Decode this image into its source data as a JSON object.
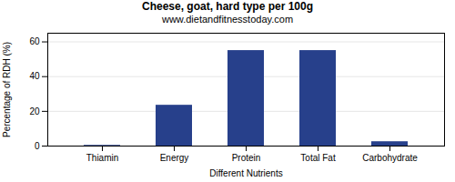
{
  "chart_data": {
    "type": "bar",
    "title": "Cheese, goat, hard type per 100g",
    "subtitle": "www.dietandfitnesstoday.com",
    "xlabel": "Different Nutrients",
    "ylabel": "Percentage of RDH (%)",
    "categories": [
      "Thiamin",
      "Energy",
      "Protein",
      "Total Fat",
      "Carbohydrate"
    ],
    "values": [
      0.4,
      23.5,
      55.0,
      55.0,
      2.5
    ],
    "color": "#27408B",
    "ylim": [
      0,
      65
    ],
    "yticks": [
      0,
      20,
      40,
      60
    ],
    "grid": true
  }
}
